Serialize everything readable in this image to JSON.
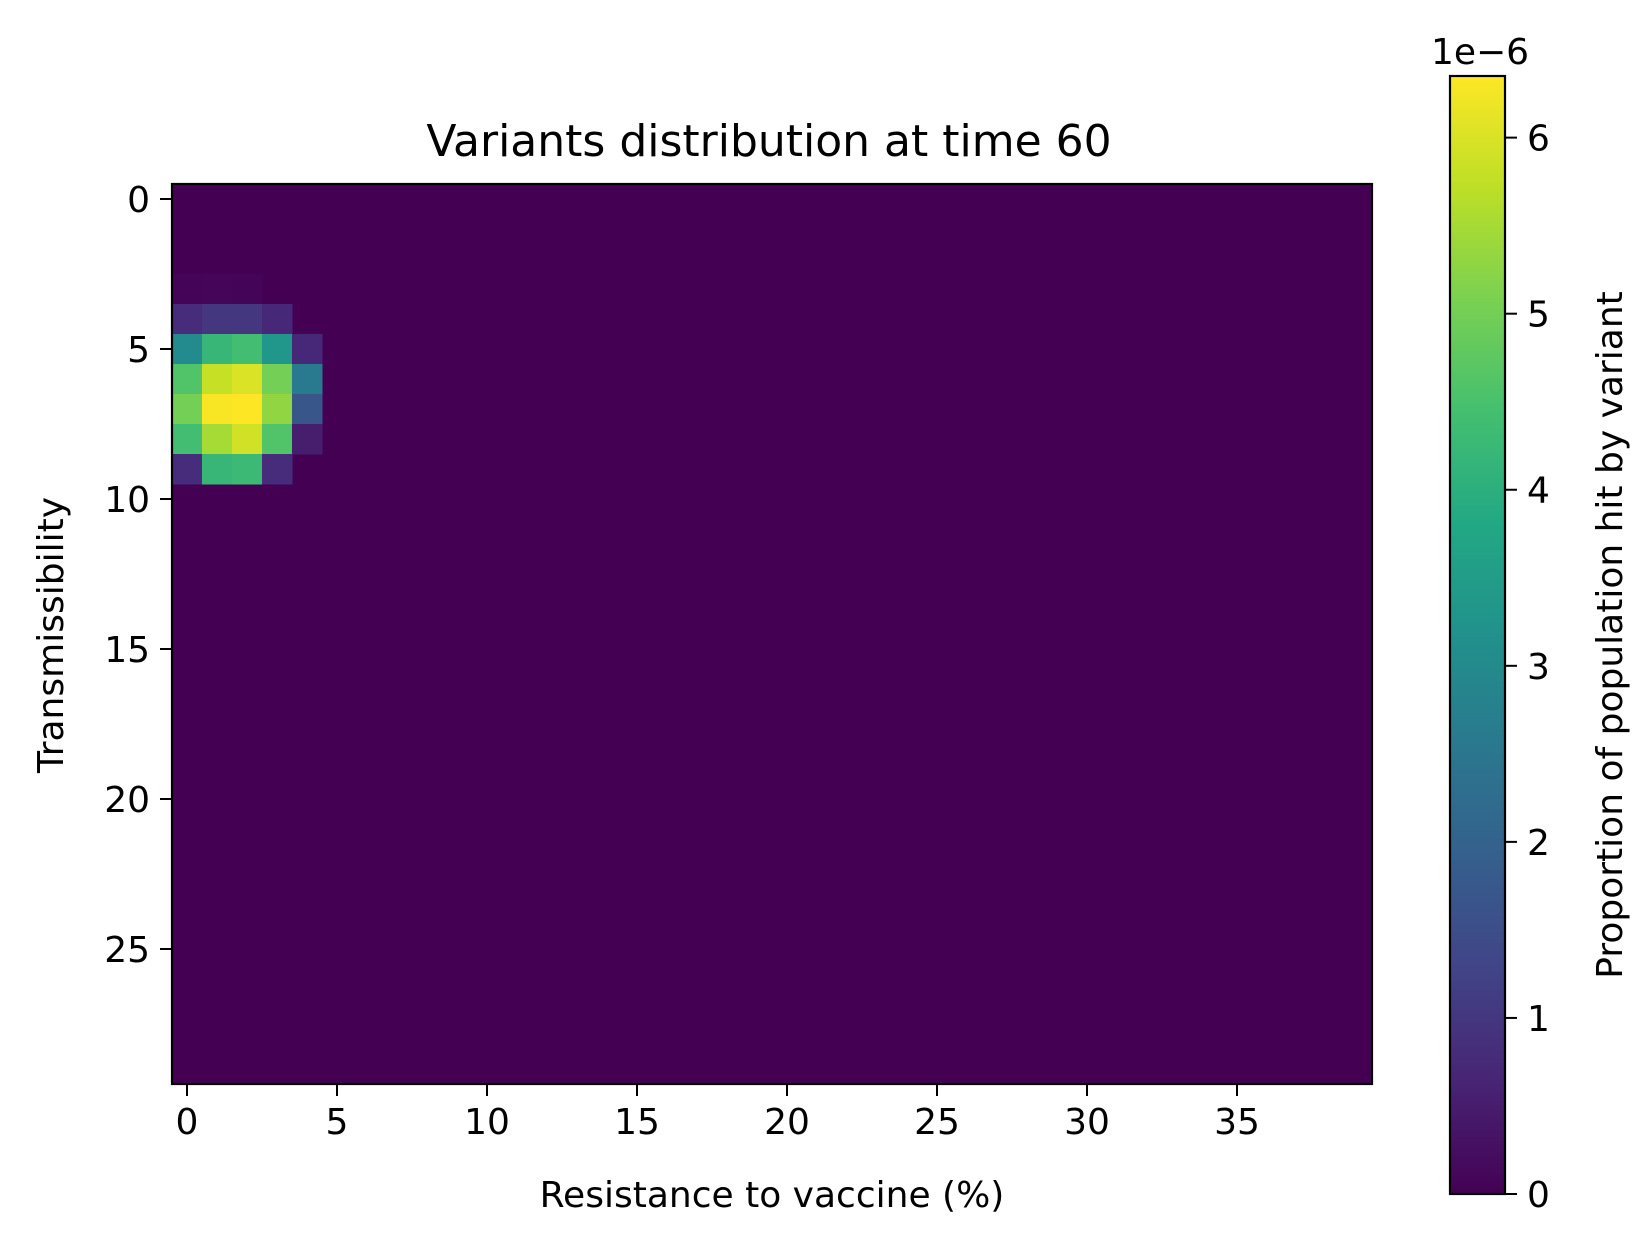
{
  "chart_data": {
    "type": "heatmap",
    "title": "Variants distribution at time 60",
    "xlabel": "Resistance to vaccine (%)",
    "ylabel": "Transmissibility",
    "n_cols": 40,
    "n_rows": 30,
    "xticks": [
      0,
      5,
      10,
      15,
      20,
      25,
      30,
      35
    ],
    "yticks": [
      0,
      5,
      10,
      15,
      20,
      25
    ],
    "colormap": "viridis",
    "colorbar": {
      "label": "Proportion of population hit by variant",
      "multiplier": "1e−6",
      "min": 0,
      "max": 6.35,
      "ticks": [
        0,
        1,
        2,
        3,
        4,
        5,
        6
      ]
    },
    "background_value": 0,
    "cells": [
      {
        "row": 3,
        "col": 0,
        "value": 0.05
      },
      {
        "row": 3,
        "col": 1,
        "value": 0.08
      },
      {
        "row": 3,
        "col": 2,
        "value": 0.06
      },
      {
        "row": 4,
        "col": 0,
        "value": 0.8
      },
      {
        "row": 4,
        "col": 1,
        "value": 1.0
      },
      {
        "row": 4,
        "col": 2,
        "value": 1.0
      },
      {
        "row": 4,
        "col": 3,
        "value": 0.7
      },
      {
        "row": 5,
        "col": 0,
        "value": 3.0
      },
      {
        "row": 5,
        "col": 1,
        "value": 4.2
      },
      {
        "row": 5,
        "col": 2,
        "value": 4.4
      },
      {
        "row": 5,
        "col": 3,
        "value": 3.3
      },
      {
        "row": 5,
        "col": 4,
        "value": 0.7
      },
      {
        "row": 6,
        "col": 0,
        "value": 4.6
      },
      {
        "row": 6,
        "col": 1,
        "value": 5.8
      },
      {
        "row": 6,
        "col": 2,
        "value": 6.0
      },
      {
        "row": 6,
        "col": 3,
        "value": 5.0
      },
      {
        "row": 6,
        "col": 4,
        "value": 2.6
      },
      {
        "row": 7,
        "col": 0,
        "value": 5.0
      },
      {
        "row": 7,
        "col": 1,
        "value": 6.3
      },
      {
        "row": 7,
        "col": 2,
        "value": 6.35
      },
      {
        "row": 7,
        "col": 3,
        "value": 5.3
      },
      {
        "row": 7,
        "col": 4,
        "value": 1.7
      },
      {
        "row": 8,
        "col": 0,
        "value": 4.4
      },
      {
        "row": 8,
        "col": 1,
        "value": 5.5
      },
      {
        "row": 8,
        "col": 2,
        "value": 5.9
      },
      {
        "row": 8,
        "col": 3,
        "value": 4.6
      },
      {
        "row": 8,
        "col": 4,
        "value": 0.5
      },
      {
        "row": 9,
        "col": 0,
        "value": 0.8
      },
      {
        "row": 9,
        "col": 1,
        "value": 4.2
      },
      {
        "row": 9,
        "col": 2,
        "value": 4.3
      },
      {
        "row": 9,
        "col": 3,
        "value": 0.8
      }
    ]
  }
}
